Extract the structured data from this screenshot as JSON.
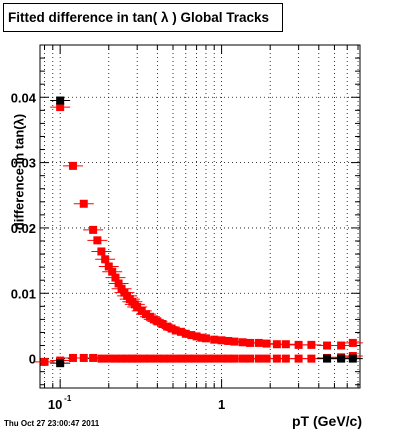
{
  "title": "Fitted difference in tan( λ )  Global Tracks",
  "timestamp": "Thu Oct 27 23:00:47 2011",
  "chart_data": {
    "type": "scatter",
    "title": "Fitted difference in tan( λ )  Global Tracks",
    "xlabel": "pT (GeV/c)",
    "ylabel": "difference in tan(λ)",
    "x_scale": "log",
    "xlim": [
      0.075,
      7.2
    ],
    "ylim": [
      -0.0045,
      0.048
    ],
    "grid": true,
    "y_ticks": [
      {
        "value": 0,
        "label": "0"
      },
      {
        "value": 0.01,
        "label": "0.01"
      },
      {
        "value": 0.02,
        "label": "0.02"
      },
      {
        "value": 0.03,
        "label": "0.03"
      },
      {
        "value": 0.04,
        "label": "0.04"
      }
    ],
    "x_tick_labels": [
      {
        "value": 0.1,
        "base": "10",
        "exp": "-1"
      },
      {
        "value": 1,
        "base": "1",
        "exp": ""
      }
    ],
    "series": [
      {
        "color": "#ff0000",
        "marker": "square",
        "points": [
          [
            0.08,
            -0.0005
          ],
          [
            0.1,
            0.0385
          ],
          [
            0.12,
            0.0295
          ],
          [
            0.14,
            0.0237
          ],
          [
            0.16,
            0.0197
          ],
          [
            0.17,
            0.0181
          ],
          [
            0.18,
            0.0164
          ],
          [
            0.19,
            0.0152
          ],
          [
            0.2,
            0.0141
          ],
          [
            0.21,
            0.0133
          ],
          [
            0.22,
            0.0124
          ],
          [
            0.23,
            0.0115
          ],
          [
            0.24,
            0.0107
          ],
          [
            0.25,
            0.0101
          ],
          [
            0.26,
            0.0096
          ],
          [
            0.27,
            0.0091
          ],
          [
            0.28,
            0.0087
          ],
          [
            0.29,
            0.0083
          ],
          [
            0.3,
            0.0079
          ],
          [
            0.32,
            0.0073
          ],
          [
            0.34,
            0.0068
          ],
          [
            0.36,
            0.0064
          ],
          [
            0.38,
            0.006
          ],
          [
            0.4,
            0.0057
          ],
          [
            0.43,
            0.0053
          ],
          [
            0.46,
            0.0049
          ],
          [
            0.49,
            0.0046
          ],
          [
            0.52,
            0.0043
          ],
          [
            0.56,
            0.0041
          ],
          [
            0.6,
            0.0038
          ],
          [
            0.65,
            0.0036
          ],
          [
            0.7,
            0.0034
          ],
          [
            0.75,
            0.0032
          ],
          [
            0.8,
            0.0031
          ],
          [
            0.9,
            0.0029
          ],
          [
            1.0,
            0.0028
          ],
          [
            1.1,
            0.0027
          ],
          [
            1.2,
            0.0026
          ],
          [
            1.35,
            0.0025
          ],
          [
            1.5,
            0.0024
          ],
          [
            1.7,
            0.0024
          ],
          [
            1.9,
            0.0023
          ],
          [
            2.2,
            0.0022
          ],
          [
            2.5,
            0.0022
          ],
          [
            3.0,
            0.0021
          ],
          [
            3.6,
            0.0021
          ],
          [
            4.5,
            0.002
          ],
          [
            5.5,
            0.002
          ],
          [
            6.5,
            0.0024
          ],
          [
            0.1,
            -0.0003
          ],
          [
            0.12,
            0.0001
          ],
          [
            0.14,
            0.0001
          ],
          [
            0.16,
            0.0001
          ],
          [
            0.18,
            0.0
          ],
          [
            0.2,
            0.0
          ],
          [
            0.22,
            0.0
          ],
          [
            0.24,
            0.0
          ],
          [
            0.26,
            0.0
          ],
          [
            0.28,
            0.0
          ],
          [
            0.3,
            0.0
          ],
          [
            0.33,
            0.0
          ],
          [
            0.36,
            0.0
          ],
          [
            0.4,
            0.0
          ],
          [
            0.44,
            0.0
          ],
          [
            0.48,
            0.0
          ],
          [
            0.52,
            0.0
          ],
          [
            0.57,
            0.0
          ],
          [
            0.62,
            0.0
          ],
          [
            0.68,
            0.0
          ],
          [
            0.75,
            0.0
          ],
          [
            0.82,
            0.0
          ],
          [
            0.9,
            0.0
          ],
          [
            1.0,
            0.0
          ],
          [
            1.1,
            0.0
          ],
          [
            1.2,
            0.0
          ],
          [
            1.35,
            0.0
          ],
          [
            1.5,
            0.0
          ],
          [
            1.7,
            0.0
          ],
          [
            1.9,
            0.0
          ],
          [
            2.2,
            0.0
          ],
          [
            2.5,
            0.0
          ],
          [
            3.0,
            0.0
          ],
          [
            3.6,
            0.0
          ],
          [
            4.5,
            0.0001
          ],
          [
            5.5,
            0.0002
          ],
          [
            6.5,
            0.0004
          ]
        ]
      },
      {
        "color": "#000000",
        "marker": "square",
        "points": [
          [
            0.1,
            0.0395
          ],
          [
            0.1,
            -0.0007
          ],
          [
            4.5,
            0.0
          ],
          [
            5.5,
            0.0
          ],
          [
            6.5,
            0.0
          ]
        ]
      }
    ]
  }
}
